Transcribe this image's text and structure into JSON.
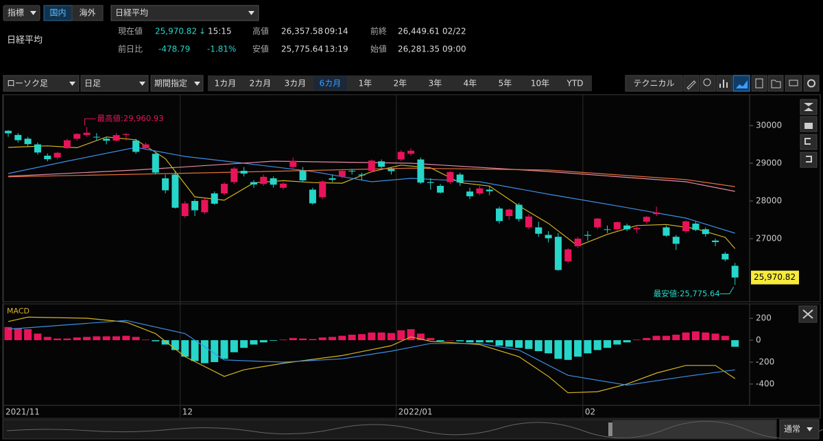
{
  "toolbar": {
    "indicator": "指標",
    "market_domestic": "国内",
    "market_foreign": "海外",
    "symbol_select": "日経平均"
  },
  "quote": {
    "name": "日経平均",
    "current": {
      "label": "現在値",
      "value": "25,970.82",
      "arrow": "↓",
      "time": "15:15"
    },
    "high": {
      "label": "高値",
      "value": "26,357.58",
      "time": "09:14"
    },
    "prev_close": {
      "label": "前終",
      "value": "26,449.61",
      "date": "02/22"
    },
    "change": {
      "label": "前日比",
      "value": "-478.79",
      "percent": "-1.81%"
    },
    "low": {
      "label": "安値",
      "value": "25,775.64",
      "time": "13:19"
    },
    "open": {
      "label": "始値",
      "value": "26,281.35",
      "time": "09:00"
    }
  },
  "controls": {
    "chart_type": "ローソク足",
    "interval": "日足",
    "period_mode": "期間指定",
    "periods": [
      "1カ月",
      "2カ月",
      "3カ月",
      "6カ月",
      "1年",
      "2年",
      "3年",
      "4年",
      "5年",
      "10年",
      "YTD"
    ],
    "selected_period": 3,
    "technical": "テクニカル",
    "view_mode": "通常"
  },
  "chart_data": [
    {
      "type": "candlestick",
      "categories": [
        "2021/11",
        null,
        null,
        null,
        null,
        null,
        null,
        null,
        null,
        null,
        null,
        null,
        null,
        null,
        null,
        null,
        null,
        null,
        "12",
        null,
        null,
        null,
        null,
        null,
        null,
        null,
        null,
        null,
        null,
        null,
        null,
        null,
        null,
        null,
        null,
        null,
        null,
        null,
        null,
        null,
        "2022/01",
        null,
        null,
        null,
        null,
        null,
        null,
        null,
        null,
        null,
        null,
        null,
        null,
        null,
        null,
        null,
        null,
        null,
        null,
        "02",
        null,
        null,
        null,
        null,
        null,
        null,
        null,
        null,
        null,
        null,
        null,
        null,
        null,
        null,
        null
      ],
      "ylim": [
        25364,
        30782
      ],
      "yticks": [
        27000,
        28000,
        29000,
        30000
      ],
      "series": [
        {
          "kind": "candle",
          "up_color": "#e8145a",
          "down_color": "#25d6c9",
          "open": [
            29860,
            29750,
            29650,
            29500,
            29200,
            29150,
            29400,
            29650,
            29750,
            29700,
            29650,
            29600,
            29750,
            29600,
            29400,
            29250,
            28600,
            28700,
            27600,
            28000,
            27700,
            28200,
            28200,
            28500,
            28800,
            28500,
            28450,
            28600,
            28350,
            28900,
            28800,
            28300,
            28100,
            28600,
            28650,
            28800,
            28700,
            28800,
            29050,
            28850,
            29100,
            29250,
            29100,
            28500,
            28400,
            28500,
            28700,
            28250,
            28200,
            28300,
            27800,
            27600,
            27900,
            27300,
            27300,
            27100,
            27050,
            26400,
            26800,
            27100,
            27300,
            27250,
            27250,
            27350,
            27250,
            27450,
            27650,
            27300,
            27050,
            27200,
            27400,
            27250,
            26950,
            26600,
            26281.35
          ],
          "high": [
            29880,
            29800,
            29700,
            29550,
            29260,
            29300,
            29650,
            29800,
            29960.93,
            29800,
            29700,
            29800,
            29800,
            29650,
            29550,
            29300,
            28700,
            28800,
            28000,
            28050,
            28100,
            28250,
            28500,
            28900,
            28900,
            28550,
            28700,
            28650,
            28500,
            29150,
            28900,
            28350,
            28550,
            28700,
            28850,
            28850,
            28750,
            29100,
            29100,
            28900,
            29350,
            29400,
            29150,
            28600,
            28450,
            28800,
            28750,
            28350,
            28400,
            28400,
            27850,
            27800,
            27950,
            27650,
            27450,
            27200,
            27150,
            26750,
            27050,
            27200,
            27550,
            27350,
            27450,
            27400,
            27350,
            27600,
            27850,
            27350,
            27100,
            27480,
            27450,
            27300,
            27000,
            26650,
            26357.58
          ],
          "low": [
            29700,
            29550,
            29450,
            29230,
            29050,
            29100,
            29380,
            29600,
            29700,
            29600,
            29500,
            29580,
            29600,
            29250,
            29350,
            28700,
            28200,
            27800,
            27550,
            27600,
            27650,
            27900,
            28150,
            28450,
            28650,
            28350,
            28400,
            28350,
            28300,
            28850,
            28500,
            27900,
            28050,
            28500,
            28600,
            28700,
            28550,
            28750,
            28850,
            28700,
            29050,
            29200,
            28450,
            28300,
            28200,
            28450,
            28400,
            28050,
            28150,
            28150,
            27400,
            27500,
            27450,
            27250,
            27050,
            26900,
            26150,
            26350,
            26750,
            26950,
            27250,
            27150,
            27200,
            27200,
            27150,
            27400,
            27600,
            27050,
            26700,
            27150,
            27200,
            27050,
            26800,
            26400,
            25775.64
          ],
          "close": [
            29794,
            29611,
            29507,
            29285,
            29106,
            29277,
            29609,
            29776,
            29808,
            29688,
            29598,
            29745,
            29774,
            29302,
            29499,
            28751,
            28283,
            27821,
            27935,
            27753,
            28029,
            27927,
            28455,
            28860,
            28725,
            28437,
            28640,
            28432,
            28459,
            29066,
            28545,
            27937,
            28517,
            28562,
            28798,
            28782,
            28676,
            29069,
            28906,
            28791,
            29301,
            29332,
            28487,
            28478,
            28222,
            28765,
            28489,
            28124,
            28333,
            28257,
            27467,
            27772,
            27522,
            27588,
            27131,
            27011,
            26170,
            26717,
            27001,
            27078,
            27533,
            27241,
            27439,
            27248,
            27284,
            27579,
            27696,
            27079,
            26865,
            27460,
            27232,
            27122,
            26910,
            26449,
            25970.82
          ]
        },
        {
          "kind": "line",
          "color": "#d8b61e",
          "x": [
            0,
            4,
            7,
            10,
            13,
            16,
            19,
            22,
            25,
            28,
            31,
            34,
            37,
            40,
            43,
            46,
            49,
            52,
            55,
            58,
            61,
            64,
            67,
            70,
            73,
            74
          ],
          "values": [
            29420,
            29461,
            29411,
            29696,
            29621,
            29122,
            28109,
            28020,
            28481,
            28539,
            28488,
            28472,
            28777,
            28949,
            28878,
            28488,
            28394,
            27870,
            27405,
            26806,
            27114,
            27349,
            27377,
            27266,
            27035,
            26737
          ]
        },
        {
          "kind": "line",
          "color": "#3b8fe8",
          "x": [
            0,
            6,
            13,
            18,
            24,
            31,
            37,
            41,
            48,
            55,
            62,
            69,
            74
          ],
          "values": [
            28727,
            29055,
            29420,
            29180,
            29000,
            28780,
            28510,
            28600,
            28510,
            28180,
            27870,
            27545,
            27145
          ]
        },
        {
          "kind": "line",
          "color": "#e88aa8",
          "x": [
            0,
            13,
            27,
            41,
            55,
            69,
            74
          ],
          "values": [
            28655,
            28820,
            29055,
            29000,
            28780,
            28510,
            28255
          ]
        },
        {
          "kind": "line",
          "color": "#e8703a",
          "x": [
            0,
            20,
            41,
            55,
            69,
            74
          ],
          "values": [
            28640,
            28745,
            28870,
            28820,
            28565,
            28380
          ]
        }
      ],
      "annotations": {
        "high": "最高値:29,960.93",
        "low": "最安値:25,775.64",
        "last": "25,970.82"
      }
    },
    {
      "type": "macd",
      "title": "MACD",
      "ylim": [
        -588,
        319
      ],
      "yticks": [
        200,
        0,
        -200,
        -400
      ],
      "series": [
        {
          "kind": "histogram",
          "up_color": "#e8145a",
          "down_color": "#25d6c9",
          "values": [
            120,
            110,
            100,
            60,
            30,
            15,
            15,
            25,
            30,
            35,
            35,
            35,
            40,
            30,
            5,
            -10,
            -40,
            -90,
            -150,
            -190,
            -210,
            -200,
            -170,
            -110,
            -70,
            -40,
            -20,
            -5,
            5,
            20,
            15,
            10,
            25,
            30,
            40,
            50,
            55,
            70,
            70,
            65,
            90,
            100,
            60,
            20,
            -10,
            0,
            -10,
            -20,
            -20,
            -20,
            -50,
            -60,
            -70,
            -80,
            -100,
            -120,
            -170,
            -180,
            -150,
            -120,
            -90,
            -70,
            -40,
            -20,
            5,
            20,
            40,
            40,
            50,
            70,
            80,
            70,
            60,
            40,
            -60
          ]
        },
        {
          "kind": "line",
          "color": "#d8b61e",
          "x": [
            0,
            2,
            8,
            12,
            15,
            18,
            22,
            24,
            28,
            34,
            39,
            41,
            43,
            48,
            52,
            55,
            57,
            60,
            63,
            66,
            69,
            72,
            74
          ],
          "values": [
            170,
            210,
            200,
            165,
            60,
            -150,
            -330,
            -270,
            -210,
            -140,
            -50,
            30,
            -10,
            -40,
            -150,
            -330,
            -480,
            -470,
            -400,
            -300,
            -230,
            -230,
            -350
          ]
        },
        {
          "kind": "line",
          "color": "#3b8fe8",
          "x": [
            0,
            12,
            18,
            22,
            28,
            34,
            39,
            43,
            48,
            52,
            57,
            63,
            69,
            74
          ],
          "values": [
            100,
            180,
            60,
            -180,
            -200,
            -170,
            -100,
            -30,
            -30,
            -90,
            -320,
            -410,
            -330,
            -270
          ]
        }
      ]
    }
  ]
}
